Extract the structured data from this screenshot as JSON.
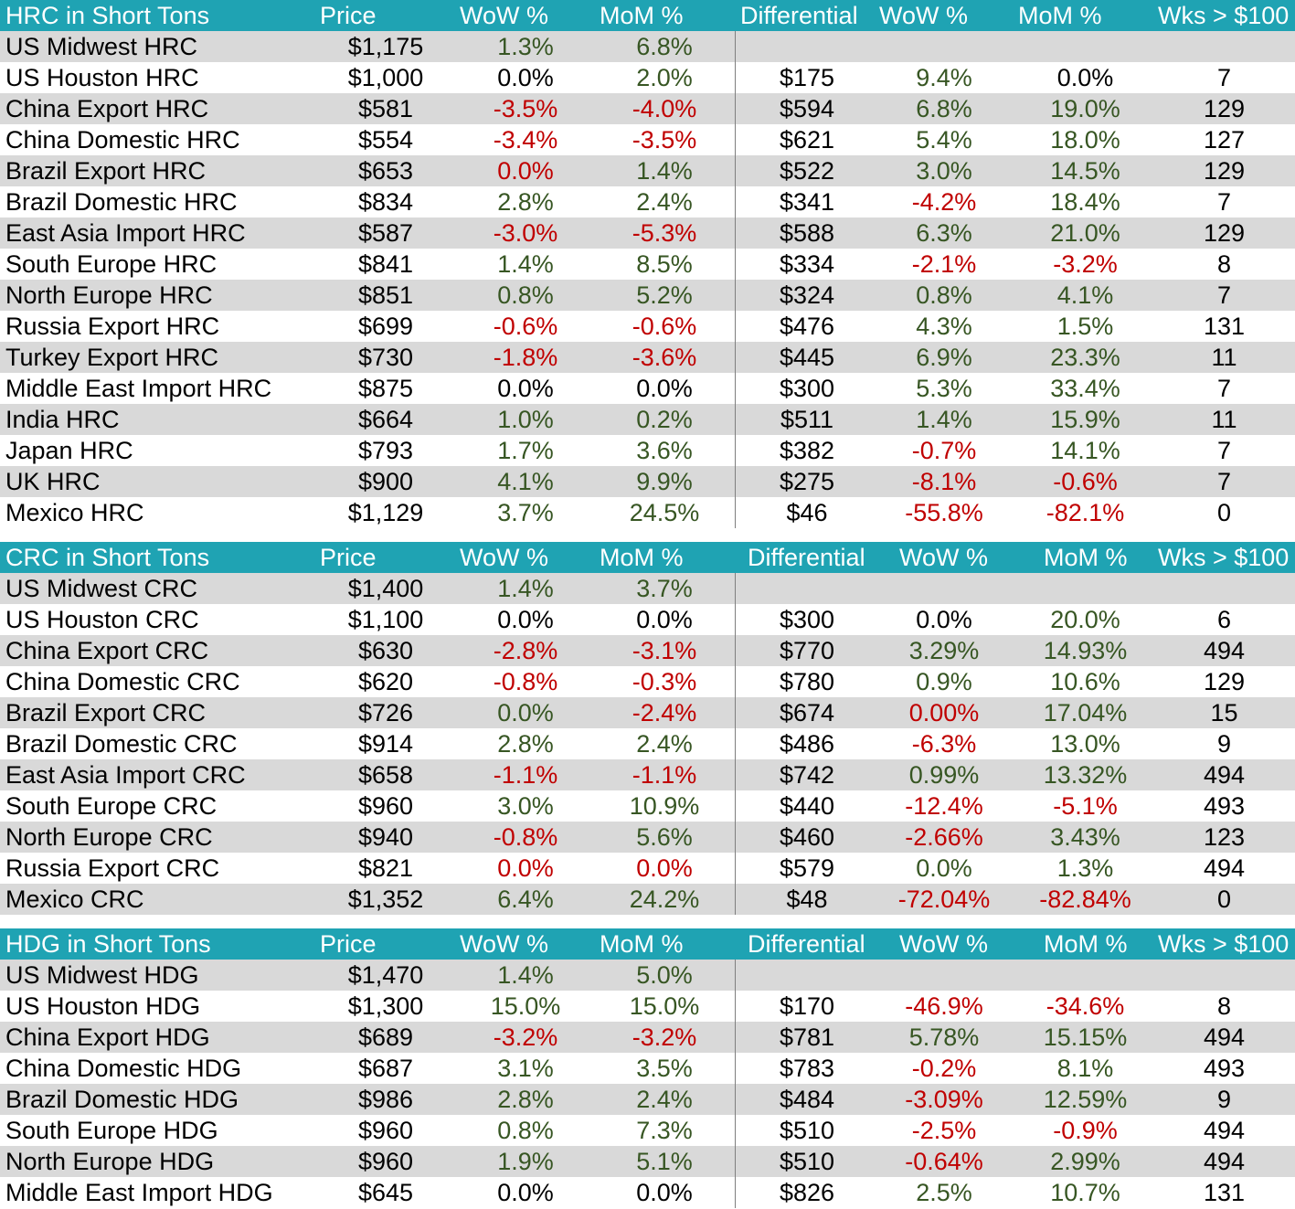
{
  "colors": {
    "header_bg": "#1fa3b3",
    "header_text": "#ffffff",
    "row_shade": "#d9d9d9",
    "positive": "#375623",
    "negative": "#c00000",
    "neutral": "#000000"
  },
  "sections": [
    {
      "headers": [
        "HRC in Short Tons",
        "Price",
        "WoW %",
        "MoM %",
        "Differential",
        "WoW %",
        "MoM %",
        "Wks > $100"
      ],
      "rows": [
        {
          "name": "US Midwest HRC",
          "price": "$1,175",
          "wow": "1.3%",
          "wow_c": "pos",
          "mom": "6.8%",
          "mom_c": "pos",
          "diff": "",
          "dwow": "",
          "dwow_c": "neu",
          "dmom": "",
          "dmom_c": "neu",
          "wks": ""
        },
        {
          "name": "US Houston HRC",
          "price": "$1,000",
          "wow": "0.0%",
          "wow_c": "neu",
          "mom": "2.0%",
          "mom_c": "pos",
          "diff": "$175",
          "dwow": "9.4%",
          "dwow_c": "pos",
          "dmom": "0.0%",
          "dmom_c": "neu",
          "wks": "7"
        },
        {
          "name": "China Export HRC",
          "price": "$581",
          "wow": "-3.5%",
          "wow_c": "neg",
          "mom": "-4.0%",
          "mom_c": "neg",
          "diff": "$594",
          "dwow": "6.8%",
          "dwow_c": "pos",
          "dmom": "19.0%",
          "dmom_c": "pos",
          "wks": "129"
        },
        {
          "name": "China Domestic HRC",
          "price": "$554",
          "wow": "-3.4%",
          "wow_c": "neg",
          "mom": "-3.5%",
          "mom_c": "neg",
          "diff": "$621",
          "dwow": "5.4%",
          "dwow_c": "pos",
          "dmom": "18.0%",
          "dmom_c": "pos",
          "wks": "127"
        },
        {
          "name": "Brazil Export HRC",
          "price": "$653",
          "wow": "0.0%",
          "wow_c": "neg",
          "mom": "1.4%",
          "mom_c": "pos",
          "diff": "$522",
          "dwow": "3.0%",
          "dwow_c": "pos",
          "dmom": "14.5%",
          "dmom_c": "pos",
          "wks": "129"
        },
        {
          "name": "Brazil Domestic HRC",
          "price": "$834",
          "wow": "2.8%",
          "wow_c": "pos",
          "mom": "2.4%",
          "mom_c": "pos",
          "diff": "$341",
          "dwow": "-4.2%",
          "dwow_c": "neg",
          "dmom": "18.4%",
          "dmom_c": "pos",
          "wks": "7"
        },
        {
          "name": "East Asia Import HRC",
          "price": "$587",
          "wow": "-3.0%",
          "wow_c": "neg",
          "mom": "-5.3%",
          "mom_c": "neg",
          "diff": "$588",
          "dwow": "6.3%",
          "dwow_c": "pos",
          "dmom": "21.0%",
          "dmom_c": "pos",
          "wks": "129"
        },
        {
          "name": "South Europe HRC",
          "price": "$841",
          "wow": "1.4%",
          "wow_c": "pos",
          "mom": "8.5%",
          "mom_c": "pos",
          "diff": "$334",
          "dwow": "-2.1%",
          "dwow_c": "neg",
          "dmom": "-3.2%",
          "dmom_c": "neg",
          "wks": "8"
        },
        {
          "name": "North Europe HRC",
          "price": "$851",
          "wow": "0.8%",
          "wow_c": "pos",
          "mom": "5.2%",
          "mom_c": "pos",
          "diff": "$324",
          "dwow": "0.8%",
          "dwow_c": "pos",
          "dmom": "4.1%",
          "dmom_c": "pos",
          "wks": "7"
        },
        {
          "name": "Russia Export HRC",
          "price": "$699",
          "wow": "-0.6%",
          "wow_c": "neg",
          "mom": "-0.6%",
          "mom_c": "neg",
          "diff": "$476",
          "dwow": "4.3%",
          "dwow_c": "pos",
          "dmom": "1.5%",
          "dmom_c": "pos",
          "wks": "131"
        },
        {
          "name": "Turkey Export HRC",
          "price": "$730",
          "wow": "-1.8%",
          "wow_c": "neg",
          "mom": "-3.6%",
          "mom_c": "neg",
          "diff": "$445",
          "dwow": "6.9%",
          "dwow_c": "pos",
          "dmom": "23.3%",
          "dmom_c": "pos",
          "wks": "11"
        },
        {
          "name": "Middle East Import HRC",
          "price": "$875",
          "wow": "0.0%",
          "wow_c": "neu",
          "mom": "0.0%",
          "mom_c": "neu",
          "diff": "$300",
          "dwow": "5.3%",
          "dwow_c": "pos",
          "dmom": "33.4%",
          "dmom_c": "pos",
          "wks": "7"
        },
        {
          "name": "India HRC",
          "price": "$664",
          "wow": "1.0%",
          "wow_c": "pos",
          "mom": "0.2%",
          "mom_c": "pos",
          "diff": "$511",
          "dwow": "1.4%",
          "dwow_c": "pos",
          "dmom": "15.9%",
          "dmom_c": "pos",
          "wks": "11"
        },
        {
          "name": "Japan HRC",
          "price": "$793",
          "wow": "1.7%",
          "wow_c": "pos",
          "mom": "3.6%",
          "mom_c": "pos",
          "diff": "$382",
          "dwow": "-0.7%",
          "dwow_c": "neg",
          "dmom": "14.1%",
          "dmom_c": "pos",
          "wks": "7"
        },
        {
          "name": "UK HRC",
          "price": "$900",
          "wow": "4.1%",
          "wow_c": "pos",
          "mom": "9.9%",
          "mom_c": "pos",
          "diff": "$275",
          "dwow": "-8.1%",
          "dwow_c": "neg",
          "dmom": "-0.6%",
          "dmom_c": "neg",
          "wks": "7"
        },
        {
          "name": "Mexico HRC",
          "price": "$1,129",
          "wow": "3.7%",
          "wow_c": "pos",
          "mom": "24.5%",
          "mom_c": "pos",
          "diff": "$46",
          "dwow": "-55.8%",
          "dwow_c": "neg",
          "dmom": "-82.1%",
          "dmom_c": "neg",
          "wks": "0"
        }
      ]
    },
    {
      "headers": [
        "CRC in Short Tons",
        "Price",
        "WoW %",
        "MoM %",
        "Differential",
        "WoW %",
        "MoM %",
        "Wks > $100"
      ],
      "rows": [
        {
          "name": "US Midwest CRC",
          "price": "$1,400",
          "wow": "1.4%",
          "wow_c": "pos",
          "mom": "3.7%",
          "mom_c": "pos",
          "diff": "",
          "dwow": "",
          "dwow_c": "neu",
          "dmom": "",
          "dmom_c": "neu",
          "wks": ""
        },
        {
          "name": "US Houston CRC",
          "price": "$1,100",
          "wow": "0.0%",
          "wow_c": "neu",
          "mom": "0.0%",
          "mom_c": "neu",
          "diff": "$300",
          "dwow": "0.0%",
          "dwow_c": "neu",
          "dmom": "20.0%",
          "dmom_c": "pos",
          "wks": "6"
        },
        {
          "name": "China Export CRC",
          "price": "$630",
          "wow": "-2.8%",
          "wow_c": "neg",
          "mom": "-3.1%",
          "mom_c": "neg",
          "diff": "$770",
          "dwow": "3.29%",
          "dwow_c": "pos",
          "dmom": "14.93%",
          "dmom_c": "pos",
          "wks": "494"
        },
        {
          "name": "China Domestic CRC",
          "price": "$620",
          "wow": "-0.8%",
          "wow_c": "neg",
          "mom": "-0.3%",
          "mom_c": "neg",
          "diff": "$780",
          "dwow": "0.9%",
          "dwow_c": "pos",
          "dmom": "10.6%",
          "dmom_c": "pos",
          "wks": "129"
        },
        {
          "name": "Brazil Export CRC",
          "price": "$726",
          "wow": "0.0%",
          "wow_c": "pos",
          "mom": "-2.4%",
          "mom_c": "neg",
          "diff": "$674",
          "dwow": "0.00%",
          "dwow_c": "neg",
          "dmom": "17.04%",
          "dmom_c": "pos",
          "wks": "15"
        },
        {
          "name": "Brazil Domestic CRC",
          "price": "$914",
          "wow": "2.8%",
          "wow_c": "pos",
          "mom": "2.4%",
          "mom_c": "pos",
          "diff": "$486",
          "dwow": "-6.3%",
          "dwow_c": "neg",
          "dmom": "13.0%",
          "dmom_c": "pos",
          "wks": "9"
        },
        {
          "name": "East Asia Import CRC",
          "price": "$658",
          "wow": "-1.1%",
          "wow_c": "neg",
          "mom": "-1.1%",
          "mom_c": "neg",
          "diff": "$742",
          "dwow": "0.99%",
          "dwow_c": "pos",
          "dmom": "13.32%",
          "dmom_c": "pos",
          "wks": "494"
        },
        {
          "name": "South Europe CRC",
          "price": "$960",
          "wow": "3.0%",
          "wow_c": "pos",
          "mom": "10.9%",
          "mom_c": "pos",
          "diff": "$440",
          "dwow": "-12.4%",
          "dwow_c": "neg",
          "dmom": "-5.1%",
          "dmom_c": "neg",
          "wks": "493"
        },
        {
          "name": "North Europe CRC",
          "price": "$940",
          "wow": "-0.8%",
          "wow_c": "neg",
          "mom": "5.6%",
          "mom_c": "pos",
          "diff": "$460",
          "dwow": "-2.66%",
          "dwow_c": "neg",
          "dmom": "3.43%",
          "dmom_c": "pos",
          "wks": "123"
        },
        {
          "name": "Russia Export CRC",
          "price": "$821",
          "wow": "0.0%",
          "wow_c": "neg",
          "mom": "0.0%",
          "mom_c": "neg",
          "diff": "$579",
          "dwow": "0.0%",
          "dwow_c": "pos",
          "dmom": "1.3%",
          "dmom_c": "pos",
          "wks": "494"
        },
        {
          "name": "Mexico CRC",
          "price": "$1,352",
          "wow": "6.4%",
          "wow_c": "pos",
          "mom": "24.2%",
          "mom_c": "pos",
          "diff": "$48",
          "dwow": "-72.04%",
          "dwow_c": "neg",
          "dmom": "-82.84%",
          "dmom_c": "neg",
          "wks": "0"
        }
      ]
    },
    {
      "headers": [
        "HDG in Short Tons",
        "Price",
        "WoW %",
        "MoM %",
        "Differential",
        "WoW %",
        "MoM %",
        "Wks > $100"
      ],
      "rows": [
        {
          "name": "US Midwest HDG",
          "price": "$1,470",
          "wow": "1.4%",
          "wow_c": "pos",
          "mom": "5.0%",
          "mom_c": "pos",
          "diff": "",
          "dwow": "",
          "dwow_c": "neu",
          "dmom": "",
          "dmom_c": "neu",
          "wks": ""
        },
        {
          "name": "US Houston HDG",
          "price": "$1,300",
          "wow": "15.0%",
          "wow_c": "pos",
          "mom": "15.0%",
          "mom_c": "pos",
          "diff": "$170",
          "dwow": "-46.9%",
          "dwow_c": "neg",
          "dmom": "-34.6%",
          "dmom_c": "neg",
          "wks": "8"
        },
        {
          "name": "China Export HDG",
          "price": "$689",
          "wow": "-3.2%",
          "wow_c": "neg",
          "mom": "-3.2%",
          "mom_c": "neg",
          "diff": "$781",
          "dwow": "5.78%",
          "dwow_c": "pos",
          "dmom": "15.15%",
          "dmom_c": "pos",
          "wks": "494"
        },
        {
          "name": "China Domestic HDG",
          "price": "$687",
          "wow": "3.1%",
          "wow_c": "pos",
          "mom": "3.5%",
          "mom_c": "pos",
          "diff": "$783",
          "dwow": "-0.2%",
          "dwow_c": "neg",
          "dmom": "8.1%",
          "dmom_c": "pos",
          "wks": "493"
        },
        {
          "name": "Brazil Domestic HDG",
          "price": "$986",
          "wow": "2.8%",
          "wow_c": "pos",
          "mom": "2.4%",
          "mom_c": "pos",
          "diff": "$484",
          "dwow": "-3.09%",
          "dwow_c": "neg",
          "dmom": "12.59%",
          "dmom_c": "pos",
          "wks": "9"
        },
        {
          "name": "South Europe HDG",
          "price": "$960",
          "wow": "0.8%",
          "wow_c": "pos",
          "mom": "7.3%",
          "mom_c": "pos",
          "diff": "$510",
          "dwow": "-2.5%",
          "dwow_c": "neg",
          "dmom": "-0.9%",
          "dmom_c": "neg",
          "wks": "494"
        },
        {
          "name": "North Europe HDG",
          "price": "$960",
          "wow": "1.9%",
          "wow_c": "pos",
          "mom": "5.1%",
          "mom_c": "pos",
          "diff": "$510",
          "dwow": "-0.64%",
          "dwow_c": "neg",
          "dmom": "2.99%",
          "dmom_c": "pos",
          "wks": "494"
        },
        {
          "name": "Middle East Import HDG",
          "price": "$645",
          "wow": "0.0%",
          "wow_c": "neu",
          "mom": "0.0%",
          "mom_c": "neu",
          "diff": "$826",
          "dwow": "2.5%",
          "dwow_c": "pos",
          "dmom": "10.7%",
          "dmom_c": "pos",
          "wks": "131"
        }
      ]
    }
  ]
}
